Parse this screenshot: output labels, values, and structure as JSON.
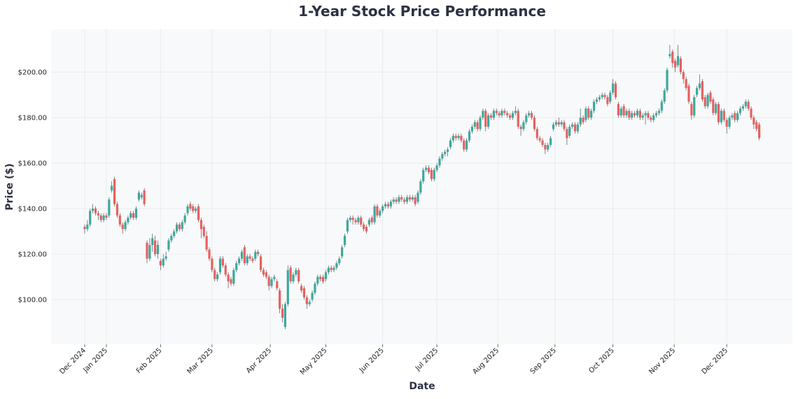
{
  "chart_data": {
    "type": "candlestick",
    "title": "1-Year Stock Price Performance",
    "xlabel": "Date",
    "ylabel": "Price ($)",
    "ylim": [
      80.3,
      218.8
    ],
    "y_ticks": [
      "$100.00",
      "$120.00",
      "$140.00",
      "$160.00",
      "$180.00",
      "$200.00"
    ],
    "y_tick_values": [
      100,
      120,
      140,
      160,
      180,
      200
    ],
    "x_ticks": [
      {
        "label": "Dec 2024",
        "candle": 0
      },
      {
        "label": "Jan 2025",
        "candle": 8
      },
      {
        "label": "Feb 2025",
        "candle": 28
      },
      {
        "label": "Mar 2025",
        "candle": 47
      },
      {
        "label": "Apr 2025",
        "candle": 68.5
      },
      {
        "label": "May 2025",
        "candle": 89
      },
      {
        "label": "Jun 2025",
        "candle": 110
      },
      {
        "label": "Jul 2025",
        "candle": 130
      },
      {
        "label": "Aug 2025",
        "candle": 152.5
      },
      {
        "label": "Sep 2025",
        "candle": 173.6
      },
      {
        "label": "Oct 2025",
        "candle": 195
      },
      {
        "label": "Nov 2025",
        "candle": 217.6
      },
      {
        "label": "Dec 2025",
        "candle": 237
      }
    ],
    "grid": true,
    "colors": {
      "up": "#3aa99f",
      "down": "#e8605f",
      "background": "#f8f9fa"
    },
    "ohlc_fields": [
      "open",
      "high",
      "low",
      "close"
    ],
    "ohlc": [
      [
        132,
        133,
        129,
        131
      ],
      [
        131,
        135,
        130,
        133
      ],
      [
        133,
        140,
        132,
        139
      ],
      [
        139,
        142,
        138,
        140
      ],
      [
        140,
        141,
        137,
        138
      ],
      [
        138,
        139,
        135,
        137
      ],
      [
        137,
        138,
        134,
        135
      ],
      [
        135,
        138,
        134,
        137
      ],
      [
        137,
        138,
        135,
        136
      ],
      [
        137,
        145,
        136,
        144
      ],
      [
        148,
        152,
        147,
        150
      ],
      [
        153,
        154,
        141,
        142
      ],
      [
        142,
        143,
        136,
        137
      ],
      [
        137,
        138,
        132,
        133
      ],
      [
        133,
        134,
        129,
        131
      ],
      [
        131,
        135,
        130,
        134
      ],
      [
        134,
        137,
        133,
        136
      ],
      [
        136,
        139,
        135,
        138
      ],
      [
        138,
        139,
        135,
        136
      ],
      [
        136,
        141,
        135,
        140
      ],
      [
        144,
        148,
        143,
        147
      ],
      [
        145,
        147,
        144,
        146
      ],
      [
        148,
        149,
        141,
        142
      ],
      [
        125,
        126,
        116,
        118
      ],
      [
        118,
        127,
        117,
        124
      ],
      [
        124,
        129,
        121,
        127
      ],
      [
        126,
        128,
        119,
        120
      ],
      [
        120,
        126,
        118,
        124
      ],
      [
        117,
        118,
        113,
        115
      ],
      [
        115,
        120,
        114,
        118
      ],
      [
        118,
        121,
        117,
        119
      ],
      [
        122,
        127,
        121,
        126
      ],
      [
        126,
        129,
        125,
        128
      ],
      [
        128,
        131,
        127,
        130
      ],
      [
        130,
        134,
        129,
        133
      ],
      [
        133,
        134,
        130,
        131
      ],
      [
        131,
        135,
        130,
        134
      ],
      [
        134,
        138,
        133,
        137
      ],
      [
        138,
        142,
        137,
        141
      ],
      [
        142,
        143,
        139,
        140
      ],
      [
        141,
        142,
        138,
        139
      ],
      [
        139,
        141,
        138,
        140
      ],
      [
        141,
        142,
        134,
        135
      ],
      [
        135,
        136,
        127,
        131
      ],
      [
        132,
        133,
        127,
        128
      ],
      [
        128,
        130,
        121,
        122
      ],
      [
        122,
        123,
        117,
        118
      ],
      [
        118,
        119,
        112,
        113
      ],
      [
        113,
        114,
        108,
        109
      ],
      [
        109,
        112,
        108,
        111
      ],
      [
        112,
        119,
        111,
        118
      ],
      [
        118,
        119,
        114,
        115
      ],
      [
        115,
        116,
        110,
        111
      ],
      [
        111,
        112,
        105,
        108
      ],
      [
        109,
        110,
        106,
        107
      ],
      [
        107,
        114,
        106,
        113
      ],
      [
        113,
        117,
        112,
        116
      ],
      [
        116,
        119,
        115,
        118
      ],
      [
        118,
        122,
        117,
        121
      ],
      [
        123,
        124,
        115,
        116
      ],
      [
        116,
        120,
        115,
        119
      ],
      [
        119,
        120,
        117,
        118
      ],
      [
        118,
        119,
        116,
        117
      ],
      [
        118,
        122,
        117,
        121
      ],
      [
        121,
        122,
        119,
        120
      ],
      [
        119,
        120,
        112,
        113
      ],
      [
        113,
        114,
        110,
        111
      ],
      [
        112,
        113,
        109,
        110
      ],
      [
        110,
        111,
        104,
        106
      ],
      [
        106,
        110,
        105,
        109
      ],
      [
        109,
        111,
        108,
        110
      ],
      [
        108,
        109,
        104,
        105
      ],
      [
        104,
        105,
        94,
        96
      ],
      [
        96,
        98,
        90,
        92
      ],
      [
        88,
        99,
        87,
        98
      ],
      [
        98,
        115,
        97,
        113
      ],
      [
        114,
        115,
        107,
        108
      ],
      [
        108,
        112,
        107,
        111
      ],
      [
        111,
        114,
        110,
        113
      ],
      [
        113,
        114,
        107,
        108
      ],
      [
        106,
        107,
        103,
        104
      ],
      [
        105,
        106,
        100,
        101
      ],
      [
        101,
        102,
        96,
        98
      ],
      [
        98,
        100,
        97,
        99
      ],
      [
        100,
        104,
        99,
        103
      ],
      [
        103,
        108,
        102,
        107
      ],
      [
        107,
        111,
        106,
        110
      ],
      [
        110,
        111,
        108,
        109
      ],
      [
        110,
        111,
        107,
        108
      ],
      [
        109,
        113,
        108,
        112
      ],
      [
        112,
        115,
        111,
        114
      ],
      [
        114,
        115,
        112,
        113
      ],
      [
        113,
        115,
        112,
        114
      ],
      [
        114,
        117,
        113,
        116
      ],
      [
        116,
        119,
        115,
        118
      ],
      [
        119,
        124,
        118,
        123
      ],
      [
        124,
        129,
        123,
        128
      ],
      [
        130,
        136,
        129,
        135
      ],
      [
        135,
        137,
        134,
        136
      ],
      [
        136,
        137,
        133,
        135
      ],
      [
        135,
        136,
        133,
        134
      ],
      [
        134,
        137,
        133,
        136
      ],
      [
        136,
        137,
        132,
        133
      ],
      [
        133,
        134,
        130,
        131
      ],
      [
        132,
        133,
        129,
        130
      ],
      [
        133,
        136,
        132,
        135
      ],
      [
        136,
        137,
        133,
        134
      ],
      [
        134,
        142,
        133,
        141
      ],
      [
        141,
        142,
        136,
        137
      ],
      [
        137,
        140,
        136,
        139
      ],
      [
        139,
        142,
        138,
        141
      ],
      [
        141,
        143,
        140,
        142
      ],
      [
        142,
        143,
        140,
        141
      ],
      [
        141,
        144,
        140,
        143
      ],
      [
        143,
        145,
        142,
        144
      ],
      [
        144,
        145,
        142,
        143
      ],
      [
        143,
        146,
        142,
        145
      ],
      [
        145,
        146,
        143,
        144
      ],
      [
        144,
        145,
        142,
        143
      ],
      [
        143,
        146,
        142,
        145
      ],
      [
        145,
        146,
        143,
        144
      ],
      [
        144,
        146,
        143,
        145
      ],
      [
        145,
        146,
        141,
        142
      ],
      [
        143,
        148,
        142,
        147
      ],
      [
        147,
        153,
        146,
        152
      ],
      [
        152,
        158,
        151,
        157
      ],
      [
        157,
        159,
        156,
        158
      ],
      [
        158,
        159,
        155,
        156
      ],
      [
        157,
        158,
        152,
        153
      ],
      [
        153,
        158,
        152,
        157
      ],
      [
        157,
        160,
        156,
        159
      ],
      [
        159,
        163,
        158,
        162
      ],
      [
        162,
        165,
        161,
        164
      ],
      [
        164,
        166,
        163,
        165
      ],
      [
        165,
        167,
        163,
        166
      ],
      [
        167,
        171,
        166,
        170
      ],
      [
        170,
        173,
        169,
        172
      ],
      [
        172,
        173,
        170,
        171
      ],
      [
        171,
        173,
        170,
        172
      ],
      [
        172,
        173,
        169,
        170
      ],
      [
        170,
        171,
        165,
        166
      ],
      [
        166,
        171,
        165,
        170
      ],
      [
        170,
        175,
        169,
        174
      ],
      [
        174,
        177,
        173,
        176
      ],
      [
        176,
        179,
        175,
        178
      ],
      [
        178,
        179,
        174,
        175
      ],
      [
        175,
        181,
        174,
        180
      ],
      [
        180,
        184,
        179,
        183
      ],
      [
        183,
        184,
        174,
        176
      ],
      [
        176,
        182,
        175,
        181
      ],
      [
        181,
        182,
        179,
        180
      ],
      [
        180,
        184,
        179,
        183
      ],
      [
        183,
        184,
        181,
        182
      ],
      [
        182,
        183,
        180,
        181
      ],
      [
        181,
        184,
        180,
        183
      ],
      [
        183,
        184,
        181,
        182
      ],
      [
        182,
        183,
        180,
        181
      ],
      [
        181,
        182,
        179,
        180
      ],
      [
        180,
        183,
        179,
        182
      ],
      [
        182,
        185,
        181,
        183
      ],
      [
        183,
        184,
        175,
        176
      ],
      [
        176,
        177,
        172,
        175
      ],
      [
        175,
        179,
        174,
        178
      ],
      [
        178,
        182,
        177,
        181
      ],
      [
        181,
        183,
        180,
        182
      ],
      [
        182,
        183,
        179,
        180
      ],
      [
        180,
        181,
        174,
        175
      ],
      [
        175,
        176,
        170,
        171
      ],
      [
        171,
        172,
        169,
        170
      ],
      [
        170,
        171,
        167,
        168
      ],
      [
        168,
        169,
        164,
        166
      ],
      [
        166,
        169,
        165,
        168
      ],
      [
        168,
        172,
        167,
        171
      ],
      [
        175,
        178,
        174,
        177
      ],
      [
        177,
        179,
        176,
        178
      ],
      [
        178,
        180,
        176,
        177
      ],
      [
        177,
        179,
        176,
        178
      ],
      [
        178,
        179,
        174,
        175
      ],
      [
        175,
        176,
        168,
        171
      ],
      [
        172,
        177,
        171,
        176
      ],
      [
        176,
        178,
        175,
        177
      ],
      [
        177,
        178,
        173,
        174
      ],
      [
        174,
        178,
        173,
        177
      ],
      [
        177,
        184,
        176,
        180
      ],
      [
        180,
        181,
        177,
        178
      ],
      [
        179,
        185,
        178,
        184
      ],
      [
        184,
        185,
        179,
        180
      ],
      [
        180,
        184,
        179,
        183
      ],
      [
        183,
        188,
        182,
        187
      ],
      [
        187,
        189,
        186,
        188
      ],
      [
        188,
        190,
        187,
        189
      ],
      [
        189,
        191,
        188,
        190
      ],
      [
        190,
        191,
        188,
        189
      ],
      [
        189,
        190,
        185,
        186
      ],
      [
        187,
        192,
        186,
        191
      ],
      [
        191,
        197,
        190,
        195
      ],
      [
        195,
        196,
        188,
        189
      ],
      [
        186,
        187,
        180,
        181
      ],
      [
        181,
        185,
        180,
        184
      ],
      [
        185,
        186,
        180,
        181
      ],
      [
        181,
        184,
        180,
        183
      ],
      [
        183,
        184,
        179,
        180
      ],
      [
        180,
        183,
        179,
        182
      ],
      [
        182,
        183,
        180,
        181
      ],
      [
        181,
        184,
        180,
        183
      ],
      [
        183,
        184,
        179,
        180
      ],
      [
        180,
        182,
        179,
        181
      ],
      [
        181,
        183,
        177,
        182
      ],
      [
        182,
        183,
        179,
        180
      ],
      [
        180,
        181,
        178,
        179
      ],
      [
        179,
        182,
        178,
        181
      ],
      [
        181,
        183,
        180,
        182
      ],
      [
        182,
        184,
        181,
        183
      ],
      [
        183,
        188,
        182,
        187
      ],
      [
        187,
        193,
        186,
        192
      ],
      [
        192,
        202,
        191,
        201
      ],
      [
        207,
        212,
        206,
        208
      ],
      [
        209,
        210,
        202,
        204
      ],
      [
        205,
        206,
        200,
        202
      ],
      [
        203,
        212,
        202,
        207
      ],
      [
        206,
        207,
        199,
        200
      ],
      [
        200,
        201,
        195,
        197
      ],
      [
        197,
        198,
        192,
        193
      ],
      [
        194,
        195,
        186,
        187
      ],
      [
        186,
        187,
        179,
        181
      ],
      [
        181,
        190,
        180,
        189
      ],
      [
        190,
        194,
        189,
        193
      ],
      [
        193,
        199,
        192,
        195
      ],
      [
        196,
        197,
        187,
        188
      ],
      [
        189,
        190,
        184,
        185
      ],
      [
        185,
        191,
        184,
        190
      ],
      [
        191,
        192,
        186,
        187
      ],
      [
        188,
        189,
        181,
        182
      ],
      [
        182,
        187,
        181,
        186
      ],
      [
        186,
        187,
        177,
        178
      ],
      [
        178,
        184,
        177,
        183
      ],
      [
        183,
        184,
        178,
        179
      ],
      [
        179,
        180,
        173,
        176
      ],
      [
        176,
        181,
        175,
        180
      ],
      [
        180,
        182,
        179,
        181
      ],
      [
        182,
        183,
        178,
        179
      ],
      [
        179,
        183,
        178,
        182
      ],
      [
        182,
        185,
        181,
        184
      ],
      [
        184,
        186,
        183,
        185
      ],
      [
        185,
        188,
        184,
        187
      ],
      [
        187,
        188,
        183,
        184
      ],
      [
        184,
        185,
        179,
        180
      ],
      [
        180,
        181,
        175,
        177
      ],
      [
        178,
        179,
        174,
        175
      ],
      [
        177,
        178,
        170,
        171
      ]
    ]
  }
}
